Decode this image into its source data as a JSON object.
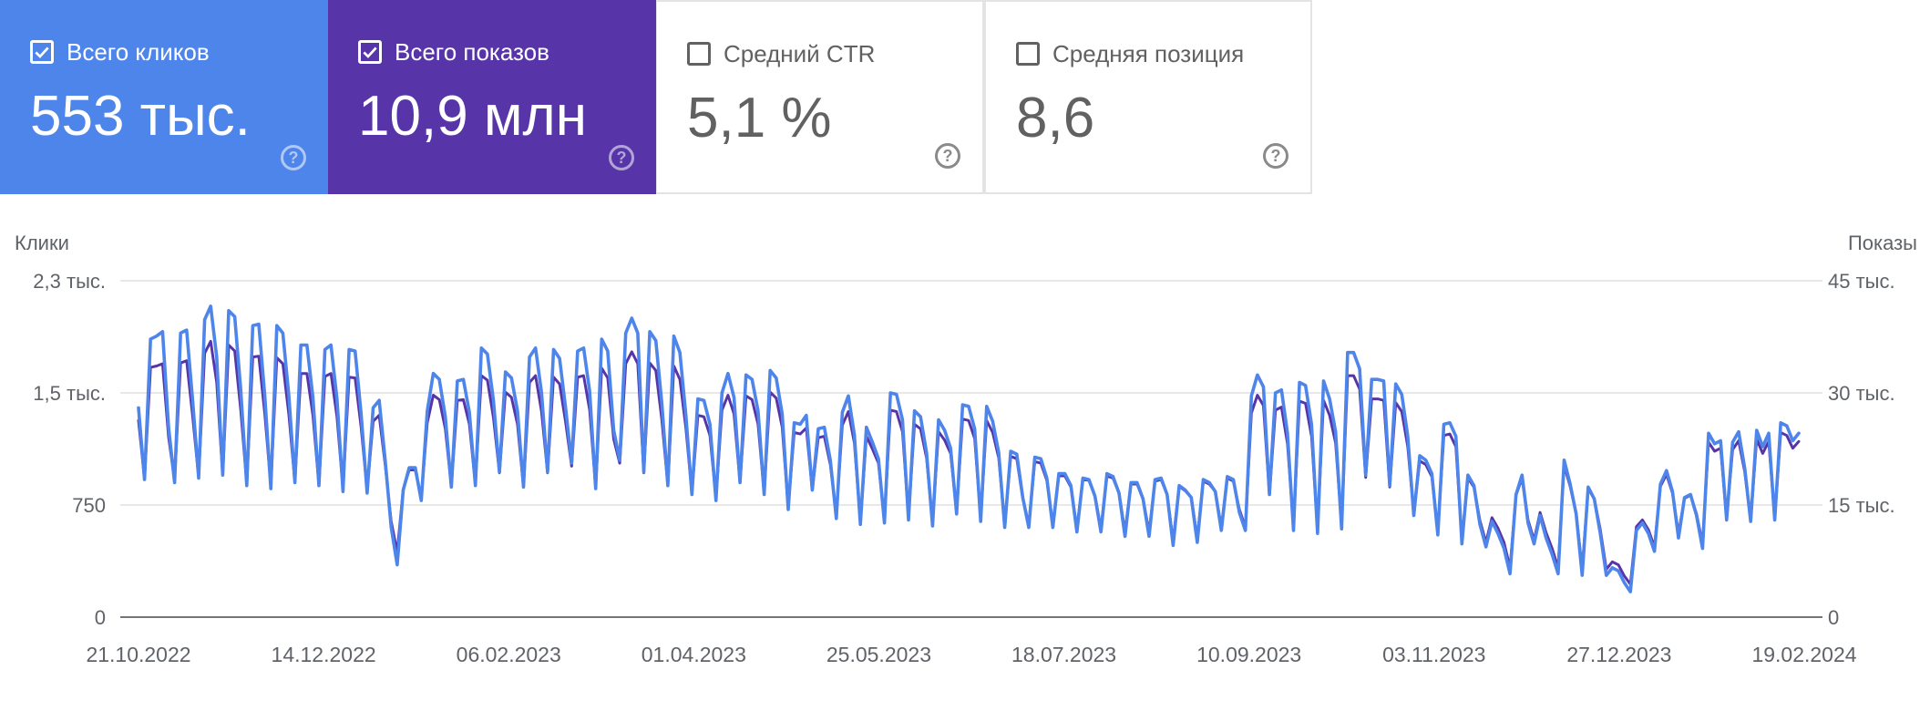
{
  "cards": [
    {
      "label": "Всего кликов",
      "value": "553 тыс.",
      "checked": true,
      "help": "?"
    },
    {
      "label": "Всего показов",
      "value": "10,9 млн",
      "checked": true,
      "help": "?"
    },
    {
      "label": "Средний CTR",
      "value": "5,1 %",
      "checked": false,
      "help": "?"
    },
    {
      "label": "Средняя позиция",
      "value": "8,6",
      "checked": false,
      "help": "?"
    }
  ],
  "colors": {
    "clicks": "#4e85ea",
    "impressions": "#5735a8",
    "grid": "#e8e8e8",
    "axis": "#757575"
  },
  "chart_data": {
    "type": "line",
    "left_axis": {
      "label": "Клики",
      "ticks": [
        {
          "value": 0,
          "label": "0"
        },
        {
          "value": 750,
          "label": "750"
        },
        {
          "value": 1500,
          "label": "1,5 тыс."
        },
        {
          "value": 2250,
          "label": "2,3 тыс."
        }
      ],
      "ylim": [
        0,
        2250
      ]
    },
    "right_axis": {
      "label": "Показы",
      "ticks": [
        {
          "value": 0,
          "label": "0"
        },
        {
          "value": 15000,
          "label": "15 тыс."
        },
        {
          "value": 30000,
          "label": "30 тыс."
        },
        {
          "value": 45000,
          "label": "45 тыс."
        }
      ],
      "ylim": [
        0,
        45000
      ]
    },
    "x_ticks": [
      "21.10.2022",
      "14.12.2022",
      "06.02.2023",
      "01.04.2023",
      "25.05.2023",
      "18.07.2023",
      "10.09.2023",
      "03.11.2023",
      "27.12.2023",
      "19.02.2024"
    ],
    "x_range": [
      "2022-10-21",
      "2024-02-21"
    ],
    "grid": true,
    "series": [
      {
        "name": "Клики",
        "axis": "left",
        "color": "#4e85ea",
        "values": [
          1400,
          920,
          1860,
          1880,
          1910,
          1270,
          900,
          1900,
          1920,
          1450,
          930,
          1990,
          2080,
          1740,
          950,
          2050,
          2010,
          1520,
          880,
          1950,
          1960,
          1480,
          860,
          1950,
          1900,
          1480,
          900,
          1820,
          1820,
          1470,
          880,
          1790,
          1820,
          1460,
          840,
          1790,
          1780,
          1360,
          830,
          1400,
          1450,
          1050,
          600,
          350,
          850,
          1000,
          1000,
          780,
          1380,
          1630,
          1590,
          1340,
          870,
          1580,
          1590,
          1370,
          880,
          1800,
          1760,
          1450,
          970,
          1640,
          1600,
          1380,
          870,
          1740,
          1800,
          1500,
          970,
          1790,
          1730,
          1400,
          1030,
          1780,
          1800,
          1510,
          860,
          1860,
          1780,
          1250,
          1050,
          1900,
          2000,
          1900,
          970,
          1910,
          1850,
          1430,
          880,
          1880,
          1770,
          1350,
          820,
          1460,
          1450,
          1290,
          780,
          1500,
          1630,
          1470,
          900,
          1620,
          1590,
          1380,
          820,
          1650,
          1600,
          1360,
          720,
          1300,
          1290,
          1350,
          850,
          1260,
          1270,
          1050,
          660,
          1370,
          1480,
          1220,
          620,
          1270,
          1170,
          1060,
          630,
          1500,
          1490,
          1320,
          650,
          1380,
          1340,
          1100,
          610,
          1320,
          1250,
          1130,
          690,
          1420,
          1410,
          1260,
          640,
          1410,
          1310,
          1100,
          600,
          1110,
          1090,
          800,
          600,
          1070,
          1060,
          930,
          600,
          960,
          960,
          880,
          570,
          930,
          920,
          810,
          570,
          960,
          940,
          830,
          540,
          900,
          900,
          790,
          540,
          920,
          930,
          820,
          480,
          880,
          850,
          800,
          500,
          920,
          900,
          840,
          580,
          940,
          920,
          700,
          580,
          1480,
          1620,
          1540,
          820,
          1500,
          1520,
          1230,
          580,
          1570,
          1550,
          1290,
          560,
          1580,
          1460,
          1240,
          590,
          1770,
          1770,
          1660,
          950,
          1590,
          1590,
          1580,
          880,
          1560,
          1490,
          1210,
          680,
          1080,
          1050,
          960,
          550,
          1290,
          1300,
          1210,
          490,
          950,
          880,
          620,
          470,
          640,
          560,
          460,
          290,
          820,
          950,
          630,
          490,
          680,
          530,
          420,
          290,
          1050,
          890,
          690,
          280,
          870,
          790,
          560,
          280,
          330,
          310,
          230,
          170,
          580,
          630,
          560,
          440,
          890,
          980,
          840,
          530,
          800,
          820,
          680,
          460,
          1230,
          1160,
          1180,
          650,
          1170,
          1240,
          1000,
          640,
          1250,
          1140,
          1230,
          650,
          1300,
          1280,
          1180,
          1230
        ]
      },
      {
        "name": "Показы",
        "axis": "right",
        "color": "#5735a8",
        "values": [
          26300,
          18500,
          33400,
          33600,
          33900,
          24100,
          18300,
          34000,
          34300,
          26900,
          18700,
          35300,
          36900,
          31400,
          19000,
          36400,
          35600,
          27700,
          17800,
          34800,
          34900,
          27200,
          17600,
          34700,
          33900,
          27100,
          18100,
          32600,
          32600,
          27000,
          17700,
          32200,
          32600,
          26800,
          17200,
          32100,
          32000,
          25400,
          17000,
          26200,
          27000,
          20400,
          12800,
          8700,
          17100,
          19700,
          19700,
          15900,
          26000,
          29700,
          29100,
          25200,
          17500,
          29000,
          29100,
          25800,
          17700,
          32300,
          31700,
          26700,
          19300,
          30100,
          29400,
          25800,
          17400,
          31400,
          32300,
          27500,
          19300,
          32100,
          31200,
          26100,
          20200,
          32100,
          32300,
          27700,
          17300,
          33300,
          32000,
          23800,
          20600,
          33900,
          35500,
          33900,
          19300,
          34000,
          33000,
          26400,
          17600,
          33600,
          31800,
          25300,
          16600,
          27000,
          26800,
          24300,
          15900,
          27700,
          29700,
          27200,
          18000,
          29600,
          29100,
          25800,
          16600,
          30100,
          29300,
          25400,
          14700,
          24700,
          24500,
          25300,
          17000,
          24000,
          24200,
          20400,
          13700,
          25700,
          27500,
          23300,
          12700,
          24200,
          22500,
          20600,
          13000,
          27700,
          27500,
          24800,
          13400,
          25800,
          25200,
          21300,
          12600,
          24800,
          23700,
          21900,
          14100,
          26500,
          26300,
          23900,
          13200,
          26300,
          24700,
          21300,
          12400,
          21500,
          21200,
          15900,
          12400,
          20800,
          20600,
          18300,
          12400,
          18900,
          18900,
          17400,
          11900,
          18400,
          18300,
          16200,
          11900,
          18900,
          18600,
          16600,
          11400,
          17800,
          17800,
          15800,
          11400,
          18200,
          18400,
          16400,
          10200,
          17500,
          16900,
          16000,
          10600,
          18200,
          17800,
          16800,
          12000,
          18600,
          18200,
          14400,
          12000,
          27300,
          29700,
          28300,
          16400,
          27700,
          28100,
          23200,
          12100,
          28900,
          28600,
          24200,
          11700,
          29000,
          27000,
          23300,
          12300,
          32300,
          32300,
          30500,
          18700,
          29200,
          29200,
          29000,
          17400,
          28700,
          27500,
          22800,
          13900,
          20900,
          20400,
          18800,
          11500,
          24300,
          24500,
          22800,
          10300,
          18600,
          17400,
          12900,
          10000,
          13300,
          11900,
          10000,
          6600,
          16300,
          18600,
          13000,
          10300,
          14000,
          11300,
          9200,
          6600,
          20300,
          17500,
          13900,
          6400,
          17200,
          15800,
          11700,
          6400,
          7400,
          7000,
          5500,
          4400,
          12100,
          13000,
          11700,
          9400,
          17500,
          19100,
          16600,
          11200,
          15900,
          16300,
          13800,
          9800,
          23400,
          22200,
          22600,
          13200,
          22400,
          23600,
          19500,
          13000,
          23800,
          21900,
          23500,
          13200,
          24700,
          24300,
          22600,
          23500
        ]
      }
    ]
  }
}
